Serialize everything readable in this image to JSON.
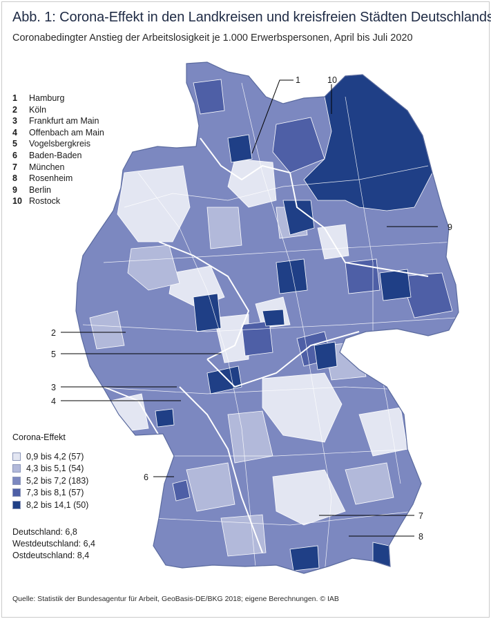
{
  "title": "Abb. 1: Corona-Effekt in den Landkreisen und kreisfreien Städten Deutschlands",
  "subtitle": "Coronabedingter Anstieg der Arbeitslosigkeit je 1.000 Erwerbspersonen, April bis Juli 2020",
  "cities": [
    {
      "num": "1",
      "name": "Hamburg"
    },
    {
      "num": "2",
      "name": "Köln"
    },
    {
      "num": "3",
      "name": "Frankfurt am Main"
    },
    {
      "num": "4",
      "name": "Offenbach am Main"
    },
    {
      "num": "5",
      "name": "Vogelsbergkreis"
    },
    {
      "num": "6",
      "name": "Baden-Baden"
    },
    {
      "num": "7",
      "name": "München"
    },
    {
      "num": "8",
      "name": "Rosenheim"
    },
    {
      "num": "9",
      "name": "Berlin"
    },
    {
      "num": "10",
      "name": "Rostock"
    }
  ],
  "legend": {
    "title": "Corona-Effekt",
    "classes": [
      {
        "label": "0,9 bis 4,2 (57)",
        "color": "#e3e6f2"
      },
      {
        "label": "4,3 bis 5,1 (54)",
        "color": "#b2b9da"
      },
      {
        "label": "5,2 bis 7,2 (183)",
        "color": "#7c88c0"
      },
      {
        "label": "7,3 bis 8,1 (57)",
        "color": "#4e5fa6"
      },
      {
        "label": "8,2 bis 14,1 (50)",
        "color": "#1f3f86"
      }
    ]
  },
  "averages": [
    "Deutschland: 6,8",
    "Westdeutschland: 6,4",
    "Ostdeutschland: 8,4"
  ],
  "source": "Quelle: Statistik der Bundesagentur für Arbeit, GeoBasis-DE/BKG 2018; eigene Berechnungen. © IAB"
}
